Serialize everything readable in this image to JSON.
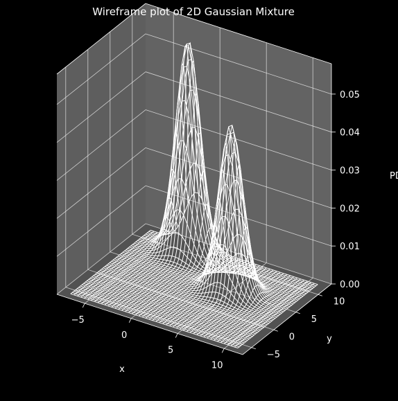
{
  "chart_data": {
    "type": "wireframe",
    "title": "Wireframe plot of 2D Gaussian Mixture",
    "xlabel": "x",
    "ylabel": "y",
    "zlabel": "PDF",
    "xlim": [
      -8,
      12
    ],
    "ylim": [
      -7,
      13
    ],
    "zlim": [
      0,
      0.058
    ],
    "x_ticks": [
      -5,
      0,
      5,
      10
    ],
    "y_ticks": [
      -5,
      0,
      5,
      10
    ],
    "z_ticks": [
      "0.00",
      "0.01",
      "0.02",
      "0.03",
      "0.04",
      "0.05"
    ],
    "z_tick_values": [
      0,
      0.01,
      0.02,
      0.03,
      0.04,
      0.05
    ],
    "grid": true,
    "background": "#000000",
    "pane_color": "#6e6e6e",
    "line_color": "#ffffff",
    "components": [
      {
        "mean": [
          -2,
          10
        ],
        "std": [
          1.2,
          1.2
        ],
        "peak": 0.056
      },
      {
        "mean": [
          5,
          5
        ],
        "std": [
          1.2,
          1.2
        ],
        "peak": 0.044
      }
    ],
    "grid_lines": 50
  }
}
